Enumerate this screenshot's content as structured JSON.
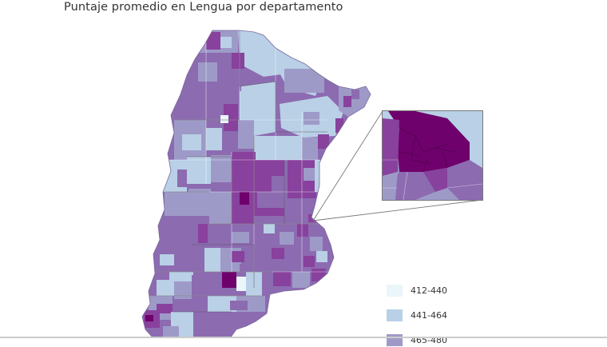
{
  "title": "Puntaje promedio en Lengua por departamento",
  "colors": {
    "c1": "#eaf6f9",
    "c2": "#b9d0e6",
    "c3": "#9e9ac8",
    "c4": "#8c6bb1",
    "c5": "#88419d",
    "c6": "#6e016b"
  },
  "legend": [
    {
      "label": "412-440",
      "color": "#eaf6f9"
    },
    {
      "label": "441-464",
      "color": "#b9d0e6"
    },
    {
      "label": "465-480",
      "color": "#9e9ac8"
    }
  ]
}
